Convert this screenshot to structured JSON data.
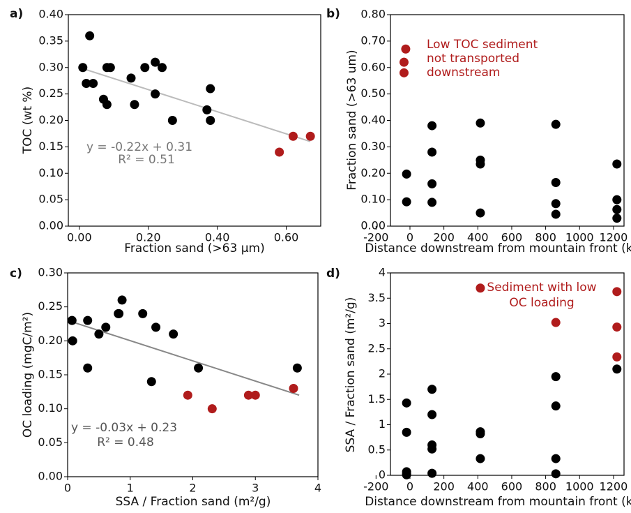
{
  "chart_data": [
    {
      "type": "scatter",
      "panel_label": "a)",
      "xlabel": "Fraction sand (>63 μm)",
      "ylabel": "TOC (wt %)",
      "xlim": [
        -0.032,
        0.7
      ],
      "ylim": [
        0,
        0.4
      ],
      "xticks": [
        {
          "value": 0,
          "label": "0.00"
        },
        {
          "value": 0.2,
          "label": "0.20"
        },
        {
          "value": 0.4,
          "label": "0.40"
        },
        {
          "value": 0.6,
          "label": "0.60"
        }
      ],
      "yticks": [
        {
          "value": 0,
          "label": "0.00"
        },
        0.05,
        {
          "value": 0.1,
          "label": "0.10"
        },
        0.15,
        {
          "value": 0.2,
          "label": "0.20"
        },
        0.25,
        {
          "value": 0.3,
          "label": "0.30"
        },
        0.35,
        {
          "value": 0.4,
          "label": "0.40"
        }
      ],
      "series": [
        {
          "color": "#000000",
          "x": [
            0.01,
            0.03,
            0.02,
            0.04,
            0.07,
            0.08,
            0.08,
            0.09,
            0.15,
            0.16,
            0.19,
            0.22,
            0.22,
            0.24,
            0.27,
            0.37,
            0.38,
            0.38
          ],
          "values": [
            0.3,
            0.36,
            0.27,
            0.27,
            0.24,
            0.23,
            0.3,
            0.3,
            0.28,
            0.23,
            0.3,
            0.31,
            0.25,
            0.3,
            0.2,
            0.22,
            0.26,
            0.2
          ]
        },
        {
          "color": "#b01c1c",
          "x": [
            0.58,
            0.62,
            0.67
          ],
          "values": [
            0.14,
            0.17,
            0.17
          ]
        }
      ],
      "trendline": {
        "color": "#bbbbbb",
        "x": [
          0.0,
          0.67
        ],
        "y": [
          0.3,
          0.16
        ]
      },
      "annotations": [
        {
          "text": "y = -0.22x + 0.31",
          "color": "#777777"
        },
        {
          "text": "R² = 0.51",
          "color": "#777777"
        }
      ]
    },
    {
      "type": "scatter",
      "panel_label": "b)",
      "xlabel": "Distance downstream from mountain front (km)",
      "ylabel": "Fraction sand (>63 um)",
      "xlim": [
        -115,
        1262
      ],
      "ylim": [
        0,
        0.8
      ],
      "xticks": [
        -200,
        0,
        200,
        400,
        600,
        800,
        1000,
        1200
      ],
      "yticks": [
        {
          "value": 0,
          "label": "0.00"
        },
        {
          "value": 0.1,
          "label": "0.10"
        },
        {
          "value": 0.2,
          "label": "0.20"
        },
        {
          "value": 0.3,
          "label": "0.30"
        },
        {
          "value": 0.4,
          "label": "0.40"
        },
        {
          "value": 0.5,
          "label": "0.50"
        },
        {
          "value": 0.6,
          "label": "0.60"
        },
        {
          "value": 0.7,
          "label": "0.70"
        },
        {
          "value": 0.8,
          "label": "0.80"
        }
      ],
      "series": [
        {
          "color": "#000000",
          "x": [
            -20,
            -20,
            130,
            130,
            130,
            130,
            415,
            415,
            415,
            415,
            860,
            860,
            860,
            860,
            1220,
            1220,
            1220,
            1220
          ],
          "values": [
            0.197,
            0.092,
            0.38,
            0.28,
            0.16,
            0.09,
            0.39,
            0.25,
            0.235,
            0.05,
            0.385,
            0.165,
            0.085,
            0.045,
            0.235,
            0.1,
            0.063,
            0.03
          ]
        },
        {
          "color": "#b01c1c",
          "x": [
            -25,
            -35,
            -35
          ],
          "values": [
            0.67,
            0.62,
            0.58
          ]
        }
      ],
      "annotations": [
        {
          "text": "Low TOC sediment",
          "color": "#b01c1c"
        },
        {
          "text": "not transported",
          "color": "#b01c1c"
        },
        {
          "text": "downstream",
          "color": "#b01c1c"
        }
      ]
    },
    {
      "type": "scatter",
      "panel_label": "c)",
      "xlabel": "SSA / Fraction sand (m²/g)",
      "ylabel": "OC loading (mgC/m²)",
      "xlim": [
        0,
        4
      ],
      "ylim": [
        0,
        0.3
      ],
      "xticks": [
        0,
        1,
        2,
        3,
        4
      ],
      "yticks": [
        {
          "value": 0,
          "label": "0.00"
        },
        0.05,
        {
          "value": 0.1,
          "label": "0.10"
        },
        0.15,
        {
          "value": 0.2,
          "label": "0.20"
        },
        0.25,
        {
          "value": 0.3,
          "label": "0.30"
        }
      ],
      "series": [
        {
          "color": "#000000",
          "x": [
            0.07,
            0.08,
            0.32,
            0.32,
            0.5,
            0.61,
            0.81,
            0.82,
            0.87,
            1.2,
            1.34,
            1.41,
            1.69,
            2.09,
            3.67
          ],
          "values": [
            0.23,
            0.2,
            0.23,
            0.16,
            0.21,
            0.22,
            0.24,
            0.24,
            0.26,
            0.24,
            0.14,
            0.22,
            0.21,
            0.16,
            0.16
          ]
        },
        {
          "color": "#b01c1c",
          "x": [
            1.92,
            2.31,
            2.89,
            3.0,
            3.61
          ],
          "values": [
            0.12,
            0.1,
            0.12,
            0.12,
            0.13
          ]
        }
      ],
      "trendline": {
        "color": "#888888",
        "x": [
          0.0,
          3.7
        ],
        "y": [
          0.23,
          0.12
        ]
      },
      "annotations": [
        {
          "text": "y = -0.03x + 0.23",
          "color": "#555555"
        },
        {
          "text": "R² = 0.48",
          "color": "#555555"
        }
      ]
    },
    {
      "type": "scatter",
      "panel_label": "d)",
      "xlabel": "Distance downstream from mountain front  (km)",
      "ylabel": "SSA / Fraction sand (m²/g)",
      "xlim": [
        -115,
        1262
      ],
      "ylim": [
        0,
        4
      ],
      "xticks": [
        -200,
        0,
        200,
        400,
        600,
        800,
        1000,
        1200
      ],
      "yticks": [
        0,
        0.5,
        1,
        1.5,
        2,
        2.5,
        3,
        3.5,
        4
      ],
      "series": [
        {
          "color": "#000000",
          "x": [
            -20,
            -20,
            -20,
            -20,
            -20,
            130,
            130,
            130,
            130,
            130,
            415,
            415,
            415,
            860,
            860,
            860,
            860,
            1220
          ],
          "values": [
            1.43,
            0.85,
            0.07,
            0.03,
            0.01,
            1.7,
            1.2,
            0.6,
            0.52,
            0.04,
            0.86,
            0.82,
            0.33,
            1.95,
            1.37,
            0.33,
            0.03,
            2.1
          ]
        },
        {
          "color": "#b01c1c",
          "x": [
            415,
            860,
            1220,
            1220,
            1220
          ],
          "values": [
            3.7,
            3.02,
            3.63,
            2.93,
            2.34
          ]
        }
      ],
      "annotations": [
        {
          "text": "Sediment with low",
          "color": "#b01c1c"
        },
        {
          "text": "OC loading",
          "color": "#b01c1c"
        }
      ]
    }
  ]
}
